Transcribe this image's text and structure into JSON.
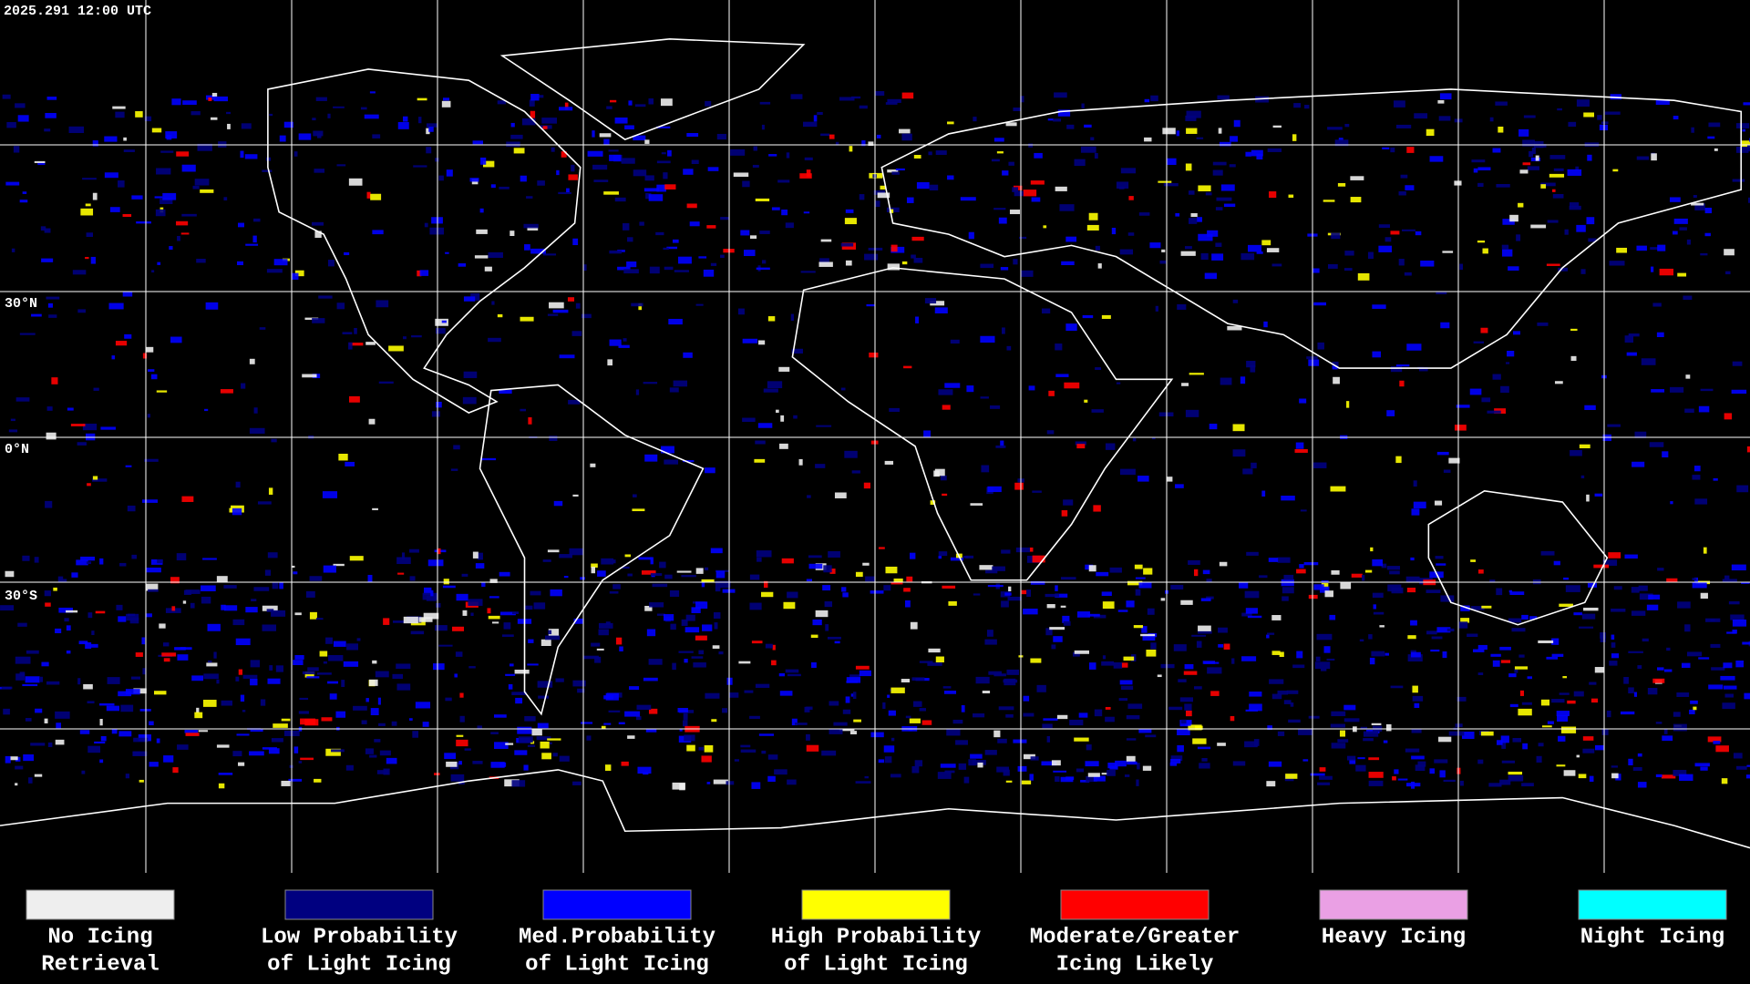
{
  "timestamp": "2025.291 12:00 UTC",
  "latitude_labels": [
    "30°N",
    "0°N",
    "30°S"
  ],
  "legend": [
    {
      "lines": [
        "No Icing",
        "Retrieval"
      ],
      "color": "#eeeeee"
    },
    {
      "lines": [
        "Low Probability",
        "of Light Icing"
      ],
      "color": "#000080"
    },
    {
      "lines": [
        "Med.Probability",
        "of Light Icing"
      ],
      "color": "#0000ff"
    },
    {
      "lines": [
        "High Probability",
        "of Light Icing"
      ],
      "color": "#ffff00"
    },
    {
      "lines": [
        "Moderate/Greater",
        "Icing Likely"
      ],
      "color": "#ff0000"
    },
    {
      "lines": [
        "Heavy Icing"
      ],
      "color": "#eaa0e4"
    },
    {
      "lines": [
        "Night Icing"
      ],
      "color": "#00ffff"
    }
  ]
}
